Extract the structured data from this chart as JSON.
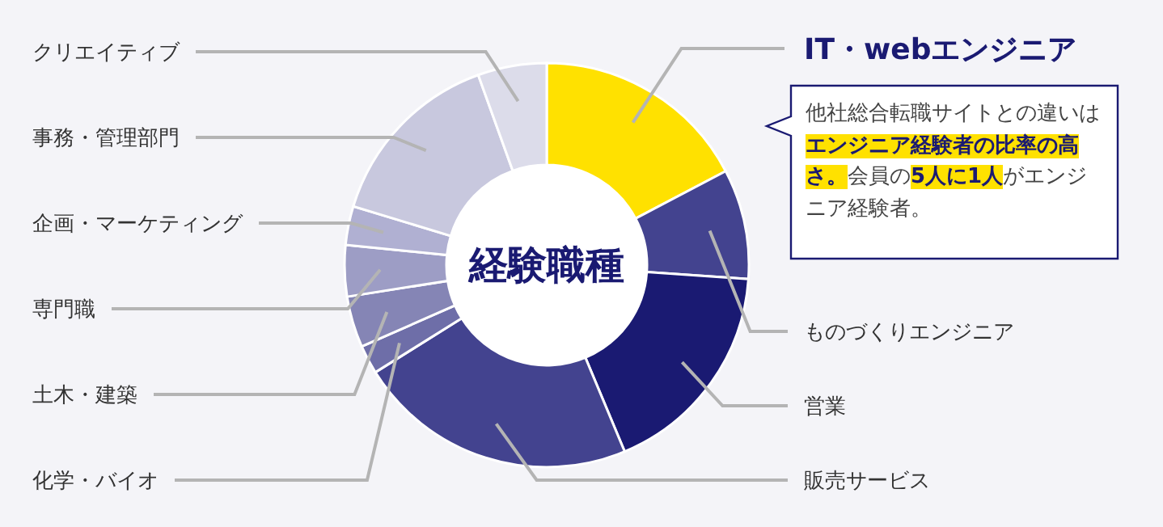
{
  "chart_data": {
    "type": "donut",
    "title": "経験職種",
    "categories": [
      "IT・webエンジニア",
      "ものづくりエンジニア",
      "営業",
      "販売サービス",
      "化学・バイオ",
      "土木・建築",
      "専門職",
      "企画・マーケティング",
      "事務・管理部門",
      "クリエイティブ"
    ],
    "values": [
      17.3,
      8.8,
      17.6,
      22.4,
      2.3,
      4.1,
      4.1,
      3.1,
      14.8,
      5.5
    ],
    "colors": [
      "#ffe100",
      "#43438f",
      "#1a1a72",
      "#43438f",
      "#6e6ea8",
      "#8585b5",
      "#9d9dc5",
      "#b0b0d2",
      "#c8c8de",
      "#dcdcea"
    ],
    "annotations": [
      "他社総合転職サイトとの違いは",
      "エンジニア経験者の比率の高さ。",
      "会員の",
      "5人に1人",
      "がエンジニア経験者。"
    ],
    "legend": false
  }
}
